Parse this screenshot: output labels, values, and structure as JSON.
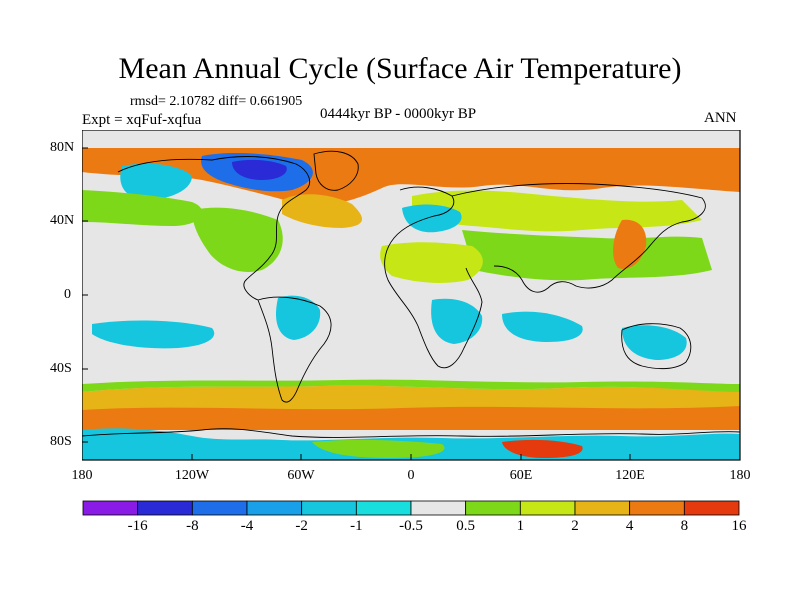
{
  "title": "Mean Annual Cycle (Surface Air Temperature)",
  "stats": "rmsd= 2.10782 diff= 0.661905",
  "expt": "Expt = xqFuf-xqfua",
  "period": "0444kyr BP - 0000kyr BP",
  "season": "ANN",
  "axes": {
    "y_ticks": [
      "80N",
      "40N",
      "0",
      "40S",
      "80S"
    ],
    "x_ticks": [
      "180",
      "120W",
      "60W",
      "0",
      "60E",
      "120E",
      "180"
    ]
  },
  "colorbar": {
    "labels": [
      "-16",
      "-8",
      "-4",
      "-2",
      "-1",
      "-0.5",
      "0.5",
      "1",
      "2",
      "4",
      "8",
      "16"
    ],
    "colors": [
      "#8a1ae6",
      "#2a2ad6",
      "#1d6ee8",
      "#1aa0e8",
      "#16c6de",
      "#18dede",
      "#e6e6e6",
      "#7ed81a",
      "#c6e616",
      "#e6b416",
      "#ec7a12",
      "#e43a0e"
    ]
  },
  "palette": {
    "ocean_neutral": "#e6e6e6",
    "land_outline": "#000000"
  }
}
